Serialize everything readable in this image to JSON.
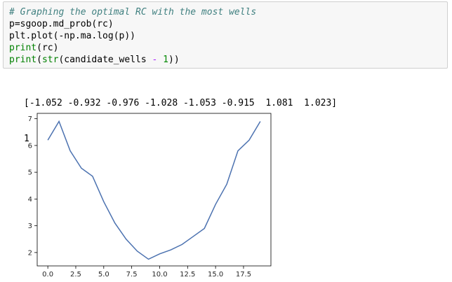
{
  "code_cell": {
    "line1_comment": "# Graphing the optimal RC with the most wells",
    "line2": "p=sgoop.md_prob(rc)",
    "line3": "plt.plot(-np.ma.log(p))",
    "line4_fn": "print",
    "line4_rest": "(rc)",
    "line5_fn1": "print",
    "line5_a": "(",
    "line5_fn2": "str",
    "line5_b": "(candidate_wells ",
    "line5_op": "-",
    "line5_c": " ",
    "line5_num": "1",
    "line5_d": "))"
  },
  "output": {
    "array_text": "[-1.052 -0.932 -0.976 -1.028 -1.053 -0.915  1.081  1.023]",
    "wells_text": "1"
  },
  "colors": {
    "line": "#4c72b0",
    "code_bg": "#f7f7f7",
    "comment": "#408080",
    "builtin": "#008000"
  },
  "chart_data": {
    "type": "line",
    "title": "",
    "xlabel": "",
    "ylabel": "",
    "xlim": [
      -0.95,
      19.95
    ],
    "ylim": [
      1.5,
      7.2
    ],
    "xticks": [
      "0.0",
      "2.5",
      "5.0",
      "7.5",
      "10.0",
      "12.5",
      "15.0",
      "17.5"
    ],
    "yticks": [
      "2",
      "3",
      "4",
      "5",
      "6",
      "7"
    ],
    "x": [
      0,
      1,
      2,
      3,
      4,
      5,
      6,
      7,
      8,
      9,
      10,
      11,
      12,
      13,
      14,
      15,
      16,
      17,
      18,
      19
    ],
    "series": [
      {
        "values": [
          6.2,
          6.9,
          5.8,
          5.15,
          4.85,
          3.9,
          3.1,
          2.5,
          2.05,
          1.75,
          1.95,
          2.1,
          2.3,
          2.6,
          2.9,
          3.8,
          4.55,
          5.8,
          6.2,
          6.9
        ]
      }
    ],
    "grid": false
  }
}
